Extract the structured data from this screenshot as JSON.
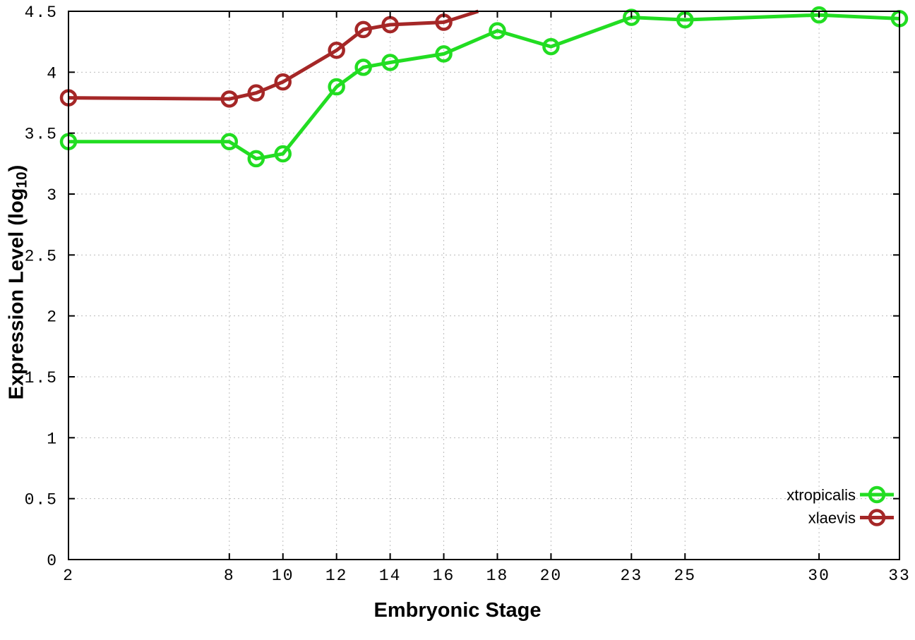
{
  "axes": {
    "x_title": "Embryonic Stage",
    "y_title_pre": "Expression Level (log",
    "y_title_sub": "10",
    "y_title_post": ")"
  },
  "chart_data": {
    "type": "line",
    "title": "",
    "xlabel": "Embryonic Stage",
    "ylabel": "Expression Level (log10)",
    "xlim": [
      2,
      33
    ],
    "ylim": [
      0,
      4.5
    ],
    "x_ticks": [
      2,
      8,
      10,
      12,
      14,
      16,
      18,
      20,
      23,
      25,
      30,
      33
    ],
    "y_ticks": [
      0,
      0.5,
      1,
      1.5,
      2,
      2.5,
      3,
      3.5,
      4,
      4.5
    ],
    "grid": true,
    "grid_style": "dotted",
    "grid_color": "#bcbcbc",
    "border_color": "#000000",
    "legend_position": "inside-bottom-right",
    "marker": "open-circle",
    "series": [
      {
        "name": "xtropicalis",
        "color": "#22dd22",
        "x": [
          2,
          8,
          9,
          10,
          12,
          13,
          14,
          16,
          18,
          20,
          23,
          25,
          30,
          33
        ],
        "y": [
          3.43,
          3.43,
          3.29,
          3.33,
          3.88,
          4.04,
          4.08,
          4.15,
          4.34,
          4.21,
          4.45,
          4.43,
          4.47,
          4.44
        ]
      },
      {
        "name": "xlaevis",
        "color": "#a52727",
        "x": [
          2,
          8,
          9,
          10,
          12,
          13,
          14,
          16,
          18
        ],
        "y": [
          3.79,
          3.78,
          3.83,
          3.92,
          4.18,
          4.35,
          4.39,
          4.41,
          4.55
        ]
      }
    ]
  }
}
